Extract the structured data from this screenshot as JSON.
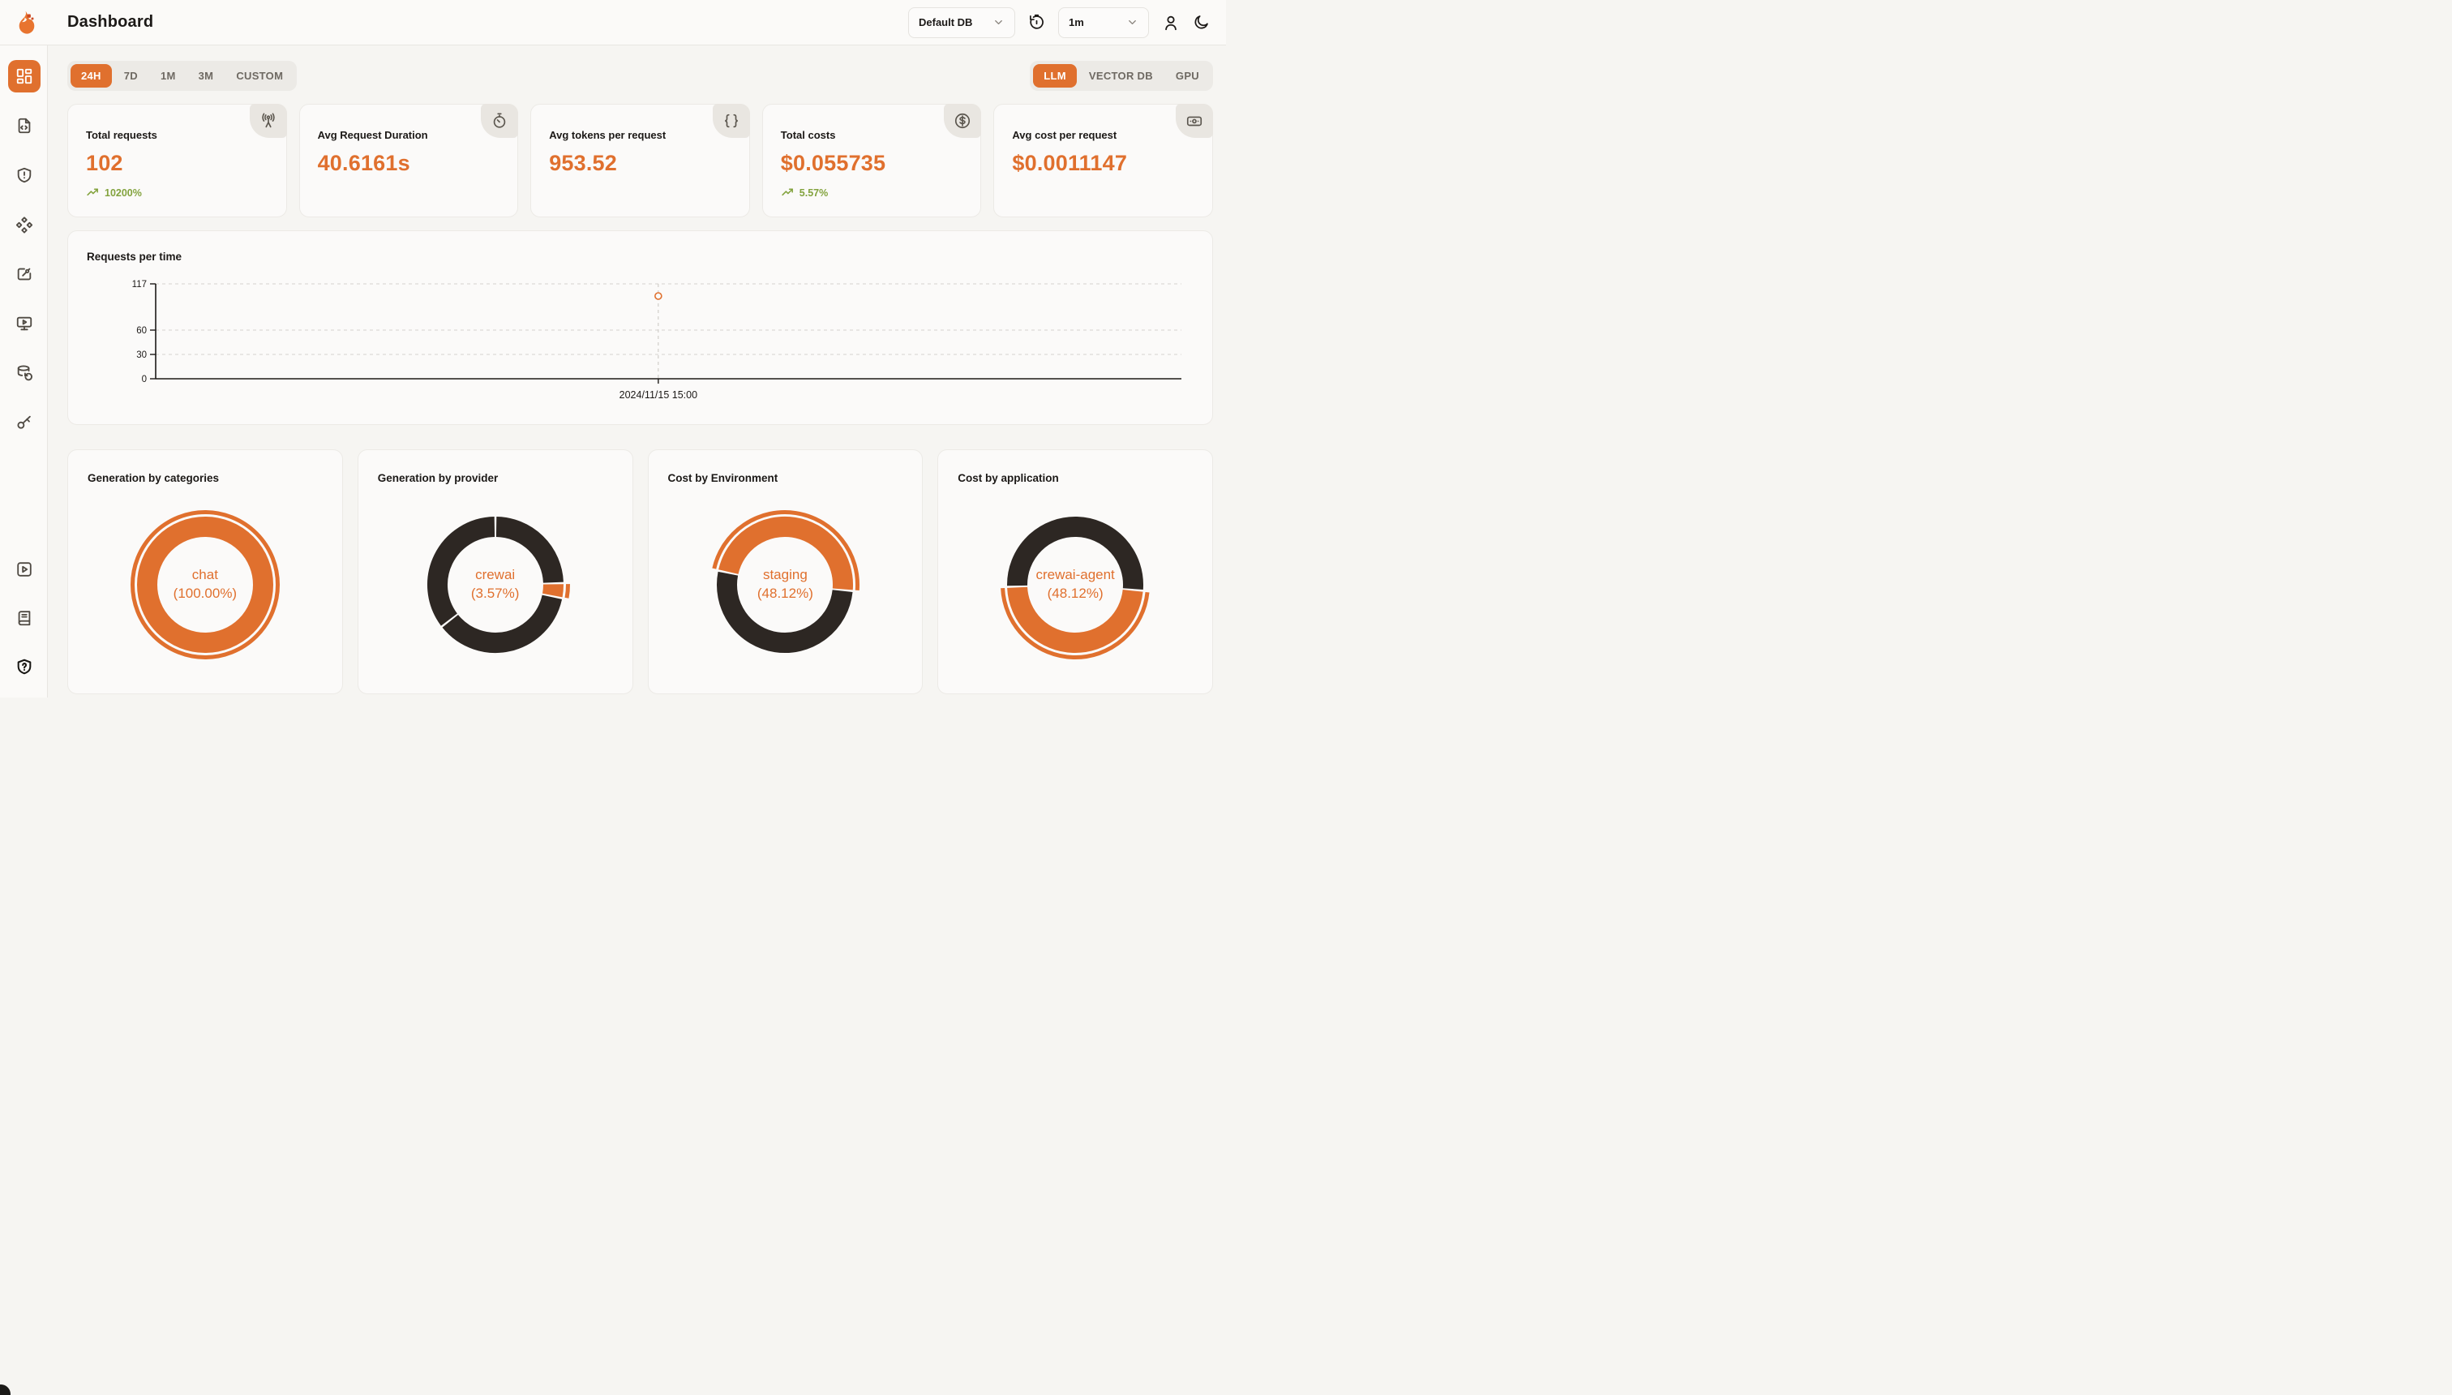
{
  "header": {
    "title": "Dashboard",
    "db_select": {
      "value": "Default DB"
    },
    "refresh_interval_select": {
      "value": "1m"
    }
  },
  "sidebar": {
    "items_top": [
      "dashboard",
      "requests",
      "exceptions",
      "prompts",
      "evaluations",
      "playground",
      "vault",
      "api-keys"
    ],
    "items_bottom": [
      "getting-started",
      "documentation",
      "support"
    ],
    "active_item": "dashboard"
  },
  "filters": {
    "time_ranges": [
      "24H",
      "7D",
      "1M",
      "3M",
      "CUSTOM"
    ],
    "active_time_range": "24H",
    "sources": [
      "LLM",
      "VECTOR DB",
      "GPU"
    ],
    "active_source": "LLM"
  },
  "stats": [
    {
      "title": "Total requests",
      "value": "102",
      "delta": "10200%",
      "icon": "radio-tower"
    },
    {
      "title": "Avg Request Duration",
      "value": "40.6161s",
      "delta": null,
      "icon": "timer"
    },
    {
      "title": "Avg tokens per request",
      "value": "953.52",
      "delta": null,
      "icon": "braces"
    },
    {
      "title": "Total costs",
      "value": "$0.055735",
      "delta": "5.57%",
      "icon": "circle-dollar-sign"
    },
    {
      "title": "Avg cost per request",
      "value": "$0.0011147",
      "delta": null,
      "icon": "banknote"
    }
  ],
  "colors": {
    "accent_orange": "#E0702E",
    "dark_segment": "#2D2723",
    "delta_green": "#83A33E",
    "grid_gray": "#D6D3CE",
    "axis_black": "#1C1917",
    "card_bg": "#FBFAF9"
  },
  "chart_data": [
    {
      "id": "requests_per_time",
      "type": "line",
      "title": "Requests per time",
      "xlabel": "",
      "ylabel": "",
      "ylim": [
        0,
        117
      ],
      "yticks": [
        0,
        30,
        60,
        117
      ],
      "grid": "dashed-horizontal",
      "points": [
        {
          "x_label": "2024/11/15 15:00",
          "x_frac": 0.49,
          "y": 102
        }
      ],
      "point_style": "open-circle"
    },
    {
      "id": "generation_by_categories",
      "type": "pie",
      "title": "Generation by categories",
      "center_label": {
        "line1": "chat",
        "line2": "(100.00%)"
      },
      "start_angle_deg": 0,
      "segments": [
        {
          "label": "chat",
          "value_pct": 100.0,
          "color": "#E0702E",
          "highlighted": true
        }
      ]
    },
    {
      "id": "generation_by_provider",
      "type": "pie",
      "title": "Generation by provider",
      "center_label": {
        "line1": "crewai",
        "line2": "(3.57%)"
      },
      "start_angle_deg": 0,
      "segments": [
        {
          "label": "",
          "value_pct": 24.6,
          "color": "#2D2723",
          "highlighted": false
        },
        {
          "label": "crewai",
          "value_pct": 3.57,
          "color": "#E0702E",
          "highlighted": true
        },
        {
          "label": "",
          "value_pct": 36.3,
          "color": "#2D2723",
          "highlighted": false
        },
        {
          "label": "",
          "value_pct": 35.53,
          "color": "#2D2723",
          "highlighted": false
        }
      ]
    },
    {
      "id": "cost_by_environment",
      "type": "pie",
      "title": "Cost by Environment",
      "center_label": {
        "line1": "staging",
        "line2": "(48.12%)"
      },
      "start_angle_deg": 282,
      "segments": [
        {
          "label": "staging",
          "value_pct": 48.12,
          "color": "#E0702E",
          "highlighted": true
        },
        {
          "label": "",
          "value_pct": 51.88,
          "color": "#2D2723",
          "highlighted": false
        }
      ]
    },
    {
      "id": "cost_by_application",
      "type": "pie",
      "title": "Cost by application",
      "center_label": {
        "line1": "crewai-agent",
        "line2": "(48.12%)"
      },
      "start_angle_deg": 95,
      "segments": [
        {
          "label": "crewai-agent",
          "value_pct": 48.12,
          "color": "#E0702E",
          "highlighted": true
        },
        {
          "label": "",
          "value_pct": 51.88,
          "color": "#2D2723",
          "highlighted": false
        }
      ]
    }
  ]
}
